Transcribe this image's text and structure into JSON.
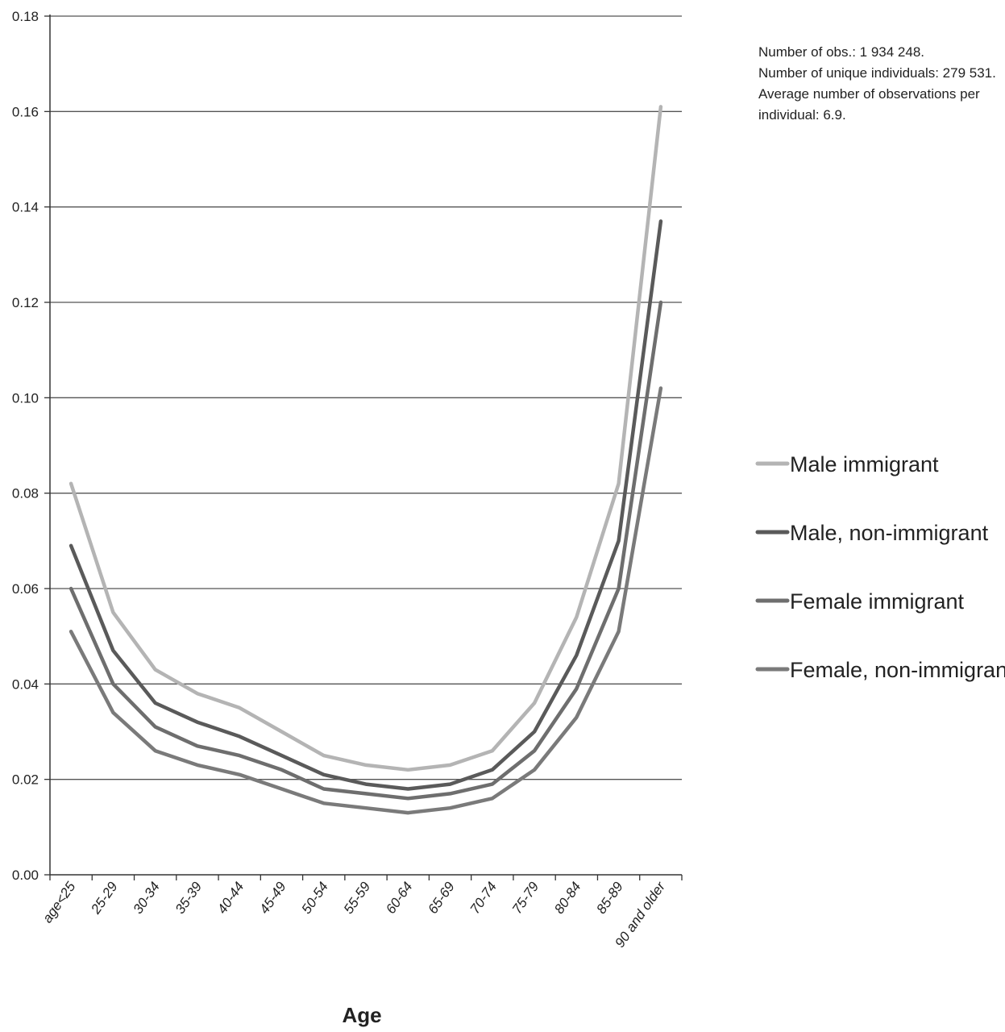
{
  "notes": [
    "Number of obs.: 1 934 248.",
    "Number of unique individuals: 279 531.",
    "Average number of observations per individual: 6.9."
  ],
  "chart_data": {
    "type": "line",
    "title": "",
    "xlabel": "Age",
    "ylabel": "",
    "ylim": [
      0,
      0.18
    ],
    "yticks": [
      "0.00",
      "0.02",
      "0.04",
      "0.06",
      "0.08",
      "0.10",
      "0.12",
      "0.14",
      "0.16",
      "0.18"
    ],
    "grid": true,
    "legend_position": "right",
    "categories": [
      "age<25",
      "25-29",
      "30-34",
      "35-39",
      "40-44",
      "45-49",
      "50-54",
      "55-59",
      "60-64",
      "65-69",
      "70-74",
      "75-79",
      "80-84",
      "85-89",
      "90 and older"
    ],
    "series": [
      {
        "name": "Male immigrant",
        "color": "#b4b4b4",
        "values": [
          0.082,
          0.055,
          0.043,
          0.038,
          0.035,
          0.03,
          0.025,
          0.023,
          0.022,
          0.023,
          0.026,
          0.036,
          0.054,
          0.082,
          0.161
        ]
      },
      {
        "name": "Male, non-immigrant",
        "color": "#5a5a5a",
        "values": [
          0.069,
          0.047,
          0.036,
          0.032,
          0.029,
          0.025,
          0.021,
          0.019,
          0.018,
          0.019,
          0.022,
          0.03,
          0.046,
          0.07,
          0.137
        ]
      },
      {
        "name": "Female immigrant",
        "color": "#6e6e6e",
        "values": [
          0.06,
          0.04,
          0.031,
          0.027,
          0.025,
          0.022,
          0.018,
          0.017,
          0.016,
          0.017,
          0.019,
          0.026,
          0.039,
          0.06,
          0.12
        ]
      },
      {
        "name": "Female, non-immigrant",
        "color": "#7a7a7a",
        "values": [
          0.051,
          0.034,
          0.026,
          0.023,
          0.021,
          0.018,
          0.015,
          0.014,
          0.013,
          0.014,
          0.016,
          0.022,
          0.033,
          0.051,
          0.102
        ]
      }
    ]
  }
}
